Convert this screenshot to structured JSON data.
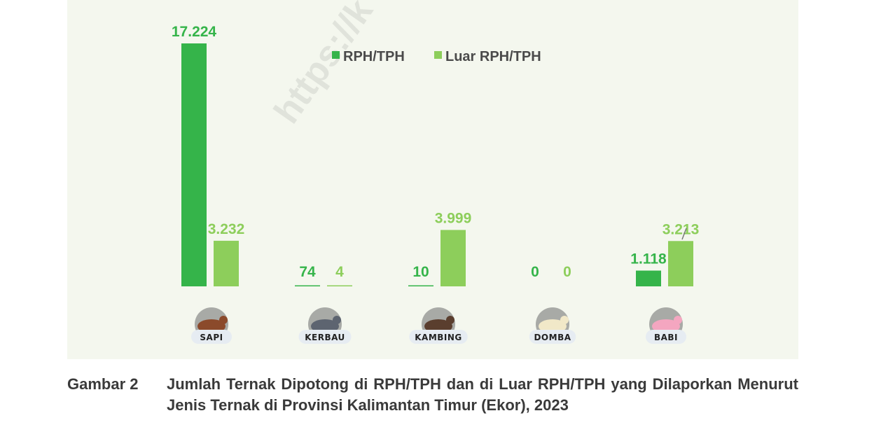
{
  "watermark": "https://k",
  "caption": {
    "label": "Gambar 2",
    "text": "Jumlah Ternak Dipotong di RPH/TPH dan di Luar RPH/TPH yang Dilaporkan Menurut Jenis Ternak di Provinsi Kalimantan Timur (Ekor), 2023"
  },
  "colors": {
    "series1": "#35b44a",
    "series2": "#8dce5b",
    "panel": "#f4f7ee"
  },
  "chart_data": {
    "type": "bar",
    "categories": [
      "SAPI",
      "KERBAU",
      "KAMBING",
      "DOMBA",
      "BABI"
    ],
    "icons": [
      "cow-icon",
      "buffalo-icon",
      "goat-icon",
      "sheep-icon",
      "pig-icon"
    ],
    "series": [
      {
        "name": "RPH/TPH",
        "values": [
          17224,
          74,
          10,
          0,
          1118
        ],
        "labels": [
          "17.224",
          "74",
          "10",
          "0",
          "1.118"
        ]
      },
      {
        "name": "Luar RPH/TPH",
        "values": [
          3232,
          4,
          3999,
          0,
          3213
        ],
        "labels": [
          "3.232",
          "4",
          "3.999",
          "0",
          "3.213"
        ]
      }
    ],
    "legend": "top-center",
    "grid": false
  }
}
